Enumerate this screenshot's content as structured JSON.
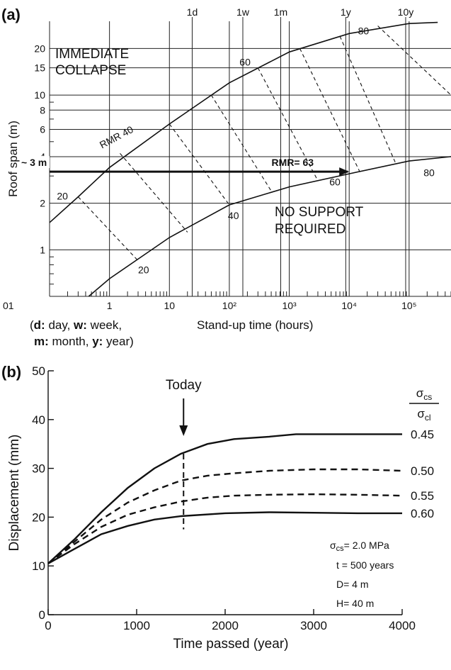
{
  "chart_data": [
    {
      "panel_label": "(a)",
      "type": "line",
      "xlabel": "Stand-up time (hours)",
      "ylabel": "Roof span (m)",
      "x_scale": "log",
      "y_scale": "log",
      "xlim": [
        0.1,
        500000
      ],
      "ylim": [
        0.5,
        30
      ],
      "x_ticks": [
        "01",
        "1",
        "10",
        "10²",
        "10³",
        "10⁴",
        "10⁵"
      ],
      "y_ticks": [
        "1",
        "2",
        "4",
        "6",
        "8",
        "10",
        "15",
        "20"
      ],
      "time_markers": [
        "1d",
        "1w",
        "1m",
        "1y",
        "10y"
      ],
      "x_footnote_lines": [
        {
          "parts": [
            {
              "text": "(",
              "bold": false
            },
            {
              "text": "d:",
              "bold": true
            },
            {
              "text": " day, ",
              "bold": false
            },
            {
              "text": "w:",
              "bold": true
            },
            {
              "text": " week,",
              "bold": false
            }
          ]
        },
        {
          "parts": [
            {
              "text": "m:",
              "bold": true
            },
            {
              "text": " month, ",
              "bold": false
            },
            {
              "text": "y:",
              "bold": true
            },
            {
              "text": " year)",
              "bold": false
            }
          ]
        }
      ],
      "regions": {
        "upper_line1": "IMMEDIATE",
        "upper_line2": "COLLAPSE",
        "lower_line1": "NO SUPPORT",
        "lower_line2": "REQUIRED"
      },
      "boundary_curves": [
        {
          "points": [
            {
              "x": 0.1,
              "y": 1.5
            },
            {
              "x": 0.3,
              "y": 2.2
            },
            {
              "x": 1,
              "y": 3.4
            },
            {
              "x": 10,
              "y": 6.5
            },
            {
              "x": 100,
              "y": 12
            },
            {
              "x": 1000,
              "y": 19
            },
            {
              "x": 10000,
              "y": 25
            },
            {
              "x": 100000,
              "y": 29
            },
            {
              "x": 300000,
              "y": 29.5
            }
          ]
        },
        {
          "points": [
            {
              "x": 0.45,
              "y": 0.5
            },
            {
              "x": 1,
              "y": 0.65
            },
            {
              "x": 10,
              "y": 1.2
            },
            {
              "x": 100,
              "y": 1.95
            },
            {
              "x": 1000,
              "y": 2.55
            },
            {
              "x": 10000,
              "y": 3.1
            },
            {
              "x": 100000,
              "y": 3.75
            },
            {
              "x": 500000,
              "y": 4.0
            }
          ]
        }
      ],
      "rmr_lines": [
        {
          "label": "20",
          "points": [
            {
              "x": 0.3,
              "y": 2.2
            },
            {
              "x": 3,
              "y": 0.85
            }
          ]
        },
        {
          "label": "",
          "points": [
            {
              "x": 1.5,
              "y": 4.2
            },
            {
              "x": 20,
              "y": 1.3
            }
          ]
        },
        {
          "label": "40",
          "points": [
            {
              "x": 10,
              "y": 6.5
            },
            {
              "x": 100,
              "y": 1.95
            }
          ]
        },
        {
          "label": "",
          "points": [
            {
              "x": 50,
              "y": 10
            },
            {
              "x": 500,
              "y": 2.4
            }
          ]
        },
        {
          "label": "60",
          "points": [
            {
              "x": 300,
              "y": 15
            },
            {
              "x": 3000,
              "y": 2.8
            }
          ]
        },
        {
          "label": "",
          "points": [
            {
              "x": 1500,
              "y": 20
            },
            {
              "x": 15000,
              "y": 3.2
            }
          ]
        },
        {
          "label": "",
          "points": [
            {
              "x": 7000,
              "y": 24
            },
            {
              "x": 60000,
              "y": 3.6
            }
          ]
        },
        {
          "label": "80",
          "points": [
            {
              "x": 30000,
              "y": 28
            },
            {
              "x": 500000,
              "y": 10
            }
          ]
        }
      ],
      "rmr_prefix": "RMR",
      "annotation": {
        "left_label": "~ 3 m",
        "arrow_label": "RMR= 63",
        "y": 3.2,
        "x_start": 0.1,
        "x_end": 10000
      }
    },
    {
      "panel_label": "(b)",
      "type": "line",
      "xlabel": "Time passed (year)",
      "ylabel": "Displacement (mm)",
      "xlim": [
        0,
        4000
      ],
      "ylim": [
        0,
        50
      ],
      "x_ticks": [
        0,
        1000,
        2000,
        3000,
        4000
      ],
      "y_ticks": [
        0,
        10,
        20,
        30,
        40,
        50
      ],
      "today": {
        "label": "Today",
        "x": 1530
      },
      "ratio_header": {
        "num": "σ",
        "num_sub": "cs",
        "den": "σ",
        "den_sub": "cl"
      },
      "series": [
        {
          "name": "0.45",
          "style": "solid",
          "points": [
            {
              "x": 0,
              "y": 10.5
            },
            {
              "x": 300,
              "y": 15.5
            },
            {
              "x": 600,
              "y": 21
            },
            {
              "x": 900,
              "y": 26
            },
            {
              "x": 1200,
              "y": 30
            },
            {
              "x": 1500,
              "y": 33
            },
            {
              "x": 1800,
              "y": 35
            },
            {
              "x": 2100,
              "y": 36
            },
            {
              "x": 2500,
              "y": 36.5
            },
            {
              "x": 2800,
              "y": 37
            },
            {
              "x": 3500,
              "y": 37
            },
            {
              "x": 4000,
              "y": 37
            }
          ]
        },
        {
          "name": "0.50",
          "style": "dashed",
          "points": [
            {
              "x": 0,
              "y": 10.5
            },
            {
              "x": 300,
              "y": 15
            },
            {
              "x": 600,
              "y": 19.5
            },
            {
              "x": 900,
              "y": 23
            },
            {
              "x": 1200,
              "y": 25.5
            },
            {
              "x": 1500,
              "y": 27.5
            },
            {
              "x": 1800,
              "y": 28.5
            },
            {
              "x": 2100,
              "y": 29
            },
            {
              "x": 2500,
              "y": 29.5
            },
            {
              "x": 3000,
              "y": 29.8
            },
            {
              "x": 3500,
              "y": 29.8
            },
            {
              "x": 4000,
              "y": 29.5
            }
          ]
        },
        {
          "name": "0.55",
          "style": "dashed",
          "points": [
            {
              "x": 0,
              "y": 10.5
            },
            {
              "x": 300,
              "y": 14.5
            },
            {
              "x": 600,
              "y": 18
            },
            {
              "x": 900,
              "y": 20.5
            },
            {
              "x": 1200,
              "y": 22
            },
            {
              "x": 1500,
              "y": 23.2
            },
            {
              "x": 1800,
              "y": 24
            },
            {
              "x": 2100,
              "y": 24.4
            },
            {
              "x": 2500,
              "y": 24.6
            },
            {
              "x": 3000,
              "y": 24.7
            },
            {
              "x": 3500,
              "y": 24.6
            },
            {
              "x": 4000,
              "y": 24.4
            }
          ]
        },
        {
          "name": "0.60",
          "style": "solid",
          "points": [
            {
              "x": 0,
              "y": 10.5
            },
            {
              "x": 300,
              "y": 13.5
            },
            {
              "x": 600,
              "y": 16.5
            },
            {
              "x": 900,
              "y": 18.2
            },
            {
              "x": 1200,
              "y": 19.5
            },
            {
              "x": 1500,
              "y": 20.2
            },
            {
              "x": 2000,
              "y": 20.8
            },
            {
              "x": 2500,
              "y": 21
            },
            {
              "x": 3000,
              "y": 20.9
            },
            {
              "x": 3500,
              "y": 20.8
            },
            {
              "x": 4000,
              "y": 20.8
            }
          ]
        }
      ],
      "params": [
        {
          "sym": "σ",
          "sub": "cs",
          "rest": "= 2.0 MPa"
        },
        {
          "sym": "",
          "sub": "",
          "rest": "t = 500 years"
        },
        {
          "sym": "",
          "sub": "",
          "rest": "D= 4 m"
        },
        {
          "sym": "",
          "sub": "",
          "rest": "H= 40 m"
        }
      ]
    }
  ]
}
